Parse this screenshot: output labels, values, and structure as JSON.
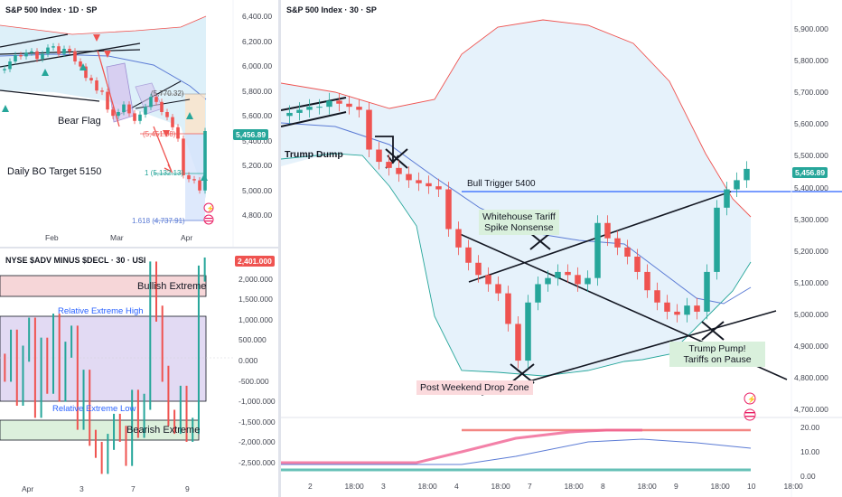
{
  "daily": {
    "title": "S&P 500 Index · 1D · SP",
    "y_ticks": [
      "6,400.00",
      "6,200.00",
      "6,000.00",
      "5,800.00",
      "5,600.00",
      "5,400.00",
      "5,200.00",
      "5,000.00",
      "4,800.00"
    ],
    "x_ticks": [
      "Feb",
      "Mar",
      "Apr"
    ],
    "price_label": "5,456.89",
    "labels": {
      "bear_flag": "Bear Flag",
      "target": "Daily BO Target 5150"
    },
    "fibs": [
      "(5,770.32)",
      "(5,451.08)",
      "1 (5,132.13)",
      "1.618 (4,737.91)"
    ]
  },
  "adv": {
    "title": "NYSE $ADV MINUS $DECL · 30 · USI",
    "y_ticks": [
      "2,500.000",
      "2,000.000",
      "1,500.000",
      "1,000.000",
      "500.000",
      "0.000",
      "-500.000",
      "-1,000.000",
      "-1,500.000",
      "-2,000.000",
      "-2,500.000"
    ],
    "x_ticks": [
      "Apr",
      "3",
      "7",
      "9"
    ],
    "price_label": "2,401.000",
    "labels": {
      "bullish": "Bullish Extreme",
      "rel_high": "Relative Extreme High",
      "rel_low": "Relative Extreme Low",
      "bearish": "Bearish Extreme"
    }
  },
  "main": {
    "title": "S&P 500 Index · 30 · SP",
    "y_ticks": [
      "5,900.000",
      "5,800.000",
      "5,700.000",
      "5,600.000",
      "5,500.000",
      "5,400.000",
      "5,300.000",
      "5,200.000",
      "5,100.000",
      "5,000.000",
      "4,900.000",
      "4,800.000",
      "4,700.000"
    ],
    "osc_ticks": [
      "20.00",
      "10.00",
      "0.00"
    ],
    "x_ticks": [
      "2",
      "18:00",
      "3",
      "18:00",
      "4",
      "18:00",
      "7",
      "18:00",
      "8",
      "18:00",
      "9",
      "18:00",
      "10",
      "18:00"
    ],
    "price_label": "5,456.89",
    "labels": {
      "trump_dump": "Trump Dump",
      "bull_trigger": "Bull Trigger 5400",
      "tariff_1": "Whitehouse Tariff",
      "tariff_2": "Spike Nonsense",
      "weekend": "Post Weekend Drop Zone",
      "pump_1": "Trump Pump!",
      "pump_2": "Tariffs on Pause"
    },
    "colors": {
      "up": "#26a69a",
      "down": "#ef5350",
      "trigger": "#2962ff"
    }
  },
  "chart_data": [
    {
      "type": "line",
      "title": "S&P 500 Index · 1D · SP",
      "series": [
        {
          "name": "S&P 500 Index",
          "values": [
            5940,
            6000,
            6050,
            6040,
            6070,
            6080,
            6020,
            6060,
            6110,
            6120,
            6060,
            6100,
            6080,
            6000,
            5960,
            5870,
            5850,
            5770,
            5760,
            5620,
            5570,
            5600,
            5660,
            5590,
            5530,
            5580,
            5640,
            5720,
            5680,
            5600,
            5560,
            5480,
            5390,
            5100,
            5070,
            5060,
            4980,
            5450
          ]
        }
      ],
      "ylim": [
        4700,
        6400
      ]
    },
    {
      "type": "bar",
      "title": "NYSE $ADV MINUS $DECL · 30 · USI",
      "series": [
        {
          "name": "ADV-DECL",
          "values": [
            -300,
            600,
            -900,
            200,
            900,
            -1200,
            400,
            -600,
            1000,
            -800,
            300,
            700,
            -1500,
            -400,
            -1900,
            -2200,
            -2600,
            -2000,
            -1500,
            -1800,
            -2400,
            -900,
            -1700,
            -1000,
            2300,
            1200,
            -300,
            -1400,
            -1600,
            -800,
            -1800,
            -1600,
            2200,
            2401
          ]
        }
      ],
      "ylim": [
        -2700,
        2600
      ]
    },
    {
      "type": "line",
      "title": "S&P 500 Index · 30 · SP",
      "series": [
        {
          "name": "S&P 500 Index",
          "values": [
            5640,
            5650,
            5660,
            5660,
            5680,
            5670,
            5660,
            5650,
            5520,
            5480,
            5460,
            5440,
            5420,
            5410,
            5400,
            5390,
            5260,
            5200,
            5150,
            5110,
            5080,
            5050,
            4950,
            4830,
            5020,
            5080,
            5100,
            5120,
            5110,
            5080,
            5100,
            5280,
            5230,
            5200,
            5170,
            5120,
            5060,
            5020,
            4990,
            4980,
            5010,
            4990,
            5120,
            5330,
            5390,
            5420,
            5456.89
          ]
        }
      ],
      "ylim": [
        4650,
        5950
      ]
    }
  ]
}
